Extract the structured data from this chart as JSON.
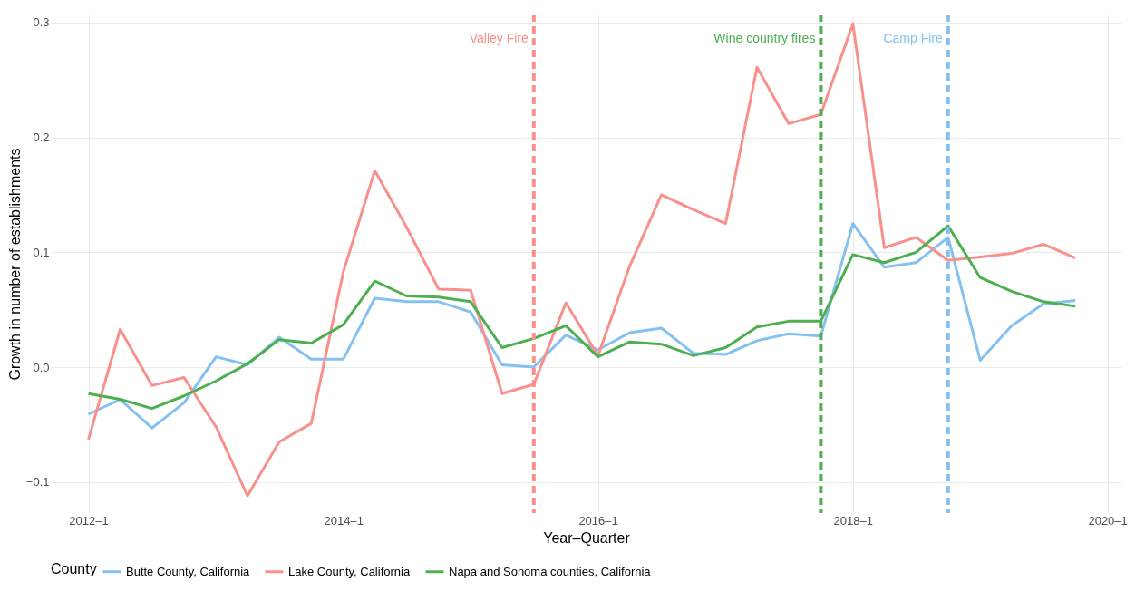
{
  "chart_data": {
    "type": "line",
    "xlabel": "Year–Quarter",
    "ylabel": "Growth in number of establishments",
    "legend_title": "County",
    "legend": "bottom",
    "grid": true,
    "line_style": "solid",
    "marker": "none",
    "x": [
      "2012-01",
      "2012-04",
      "2012-07",
      "2012-10",
      "2013-01",
      "2013-04",
      "2013-07",
      "2013-10",
      "2014-01",
      "2014-04",
      "2014-07",
      "2014-10",
      "2015-01",
      "2015-04",
      "2015-07",
      "2015-10",
      "2016-01",
      "2016-04",
      "2016-07",
      "2016-10",
      "2017-01",
      "2017-04",
      "2017-07",
      "2017-10",
      "2018-01",
      "2018-04",
      "2018-07",
      "2018-10",
      "2019-01",
      "2019-04",
      "2019-07",
      "2019-10"
    ],
    "xlim": [
      "2011-09-15",
      "2020-02-10"
    ],
    "xticks": [
      {
        "value": "2012-01",
        "label": "2012–1"
      },
      {
        "value": "2014-01",
        "label": "2014–1"
      },
      {
        "value": "2016-01",
        "label": "2016–1"
      },
      {
        "value": "2018-01",
        "label": "2018–1"
      },
      {
        "value": "2020-01",
        "label": "2020–1"
      }
    ],
    "ylim": [
      -0.127,
      0.307
    ],
    "yticks": [
      {
        "value": -0.1,
        "label": "−0.1"
      },
      {
        "value": 0,
        "label": "0.0"
      },
      {
        "value": 0.1,
        "label": "0.1"
      },
      {
        "value": 0.2,
        "label": "0.2"
      },
      {
        "value": 0.3,
        "label": "0.3"
      }
    ],
    "series": [
      {
        "name": "Butte County, California",
        "color": "#85c1f0",
        "values": [
          -0.041,
          -0.028,
          -0.053,
          -0.031,
          0.009,
          0.002,
          0.026,
          0.007,
          0.007,
          0.06,
          0.057,
          0.057,
          0.048,
          0.002,
          0.0,
          0.028,
          0.015,
          0.03,
          0.034,
          0.012,
          0.011,
          0.023,
          0.029,
          0.027,
          0.125,
          0.087,
          0.091,
          0.113,
          0.006,
          0.036,
          0.055,
          0.058
        ]
      },
      {
        "name": "Lake County, California",
        "color": "#f8908c",
        "values": [
          -0.063,
          0.033,
          -0.016,
          -0.009,
          -0.052,
          -0.112,
          -0.065,
          -0.049,
          0.083,
          0.171,
          0.122,
          0.068,
          0.067,
          -0.023,
          -0.015,
          0.056,
          0.01,
          0.088,
          0.15,
          0.137,
          0.125,
          0.261,
          0.212,
          0.22,
          0.299,
          0.104,
          0.113,
          0.093,
          0.096,
          0.099,
          0.107,
          0.095
        ]
      },
      {
        "name": "Napa and Sonoma counties, California",
        "color": "#4daf50",
        "values": [
          -0.023,
          -0.028,
          -0.036,
          -0.025,
          -0.012,
          0.003,
          0.024,
          0.021,
          0.037,
          0.075,
          0.062,
          0.061,
          0.057,
          0.017,
          0.025,
          0.036,
          0.009,
          0.022,
          0.02,
          0.01,
          0.017,
          0.035,
          0.04,
          0.04,
          0.098,
          0.091,
          0.1,
          0.123,
          0.078,
          0.066,
          0.057,
          0.053
        ]
      }
    ],
    "ref_lines": [
      {
        "axis": "x",
        "value": "2015-07",
        "label": "Valley Fire",
        "color": "#f8908c",
        "line_style": "dashed"
      },
      {
        "axis": "x",
        "value": "2017-10",
        "label": "Wine country fires",
        "color": "#4daf50",
        "line_style": "dashed"
      },
      {
        "axis": "x",
        "value": "2018-10",
        "label": "Camp Fire",
        "color": "#85c1f0",
        "line_style": "dashed"
      }
    ]
  }
}
